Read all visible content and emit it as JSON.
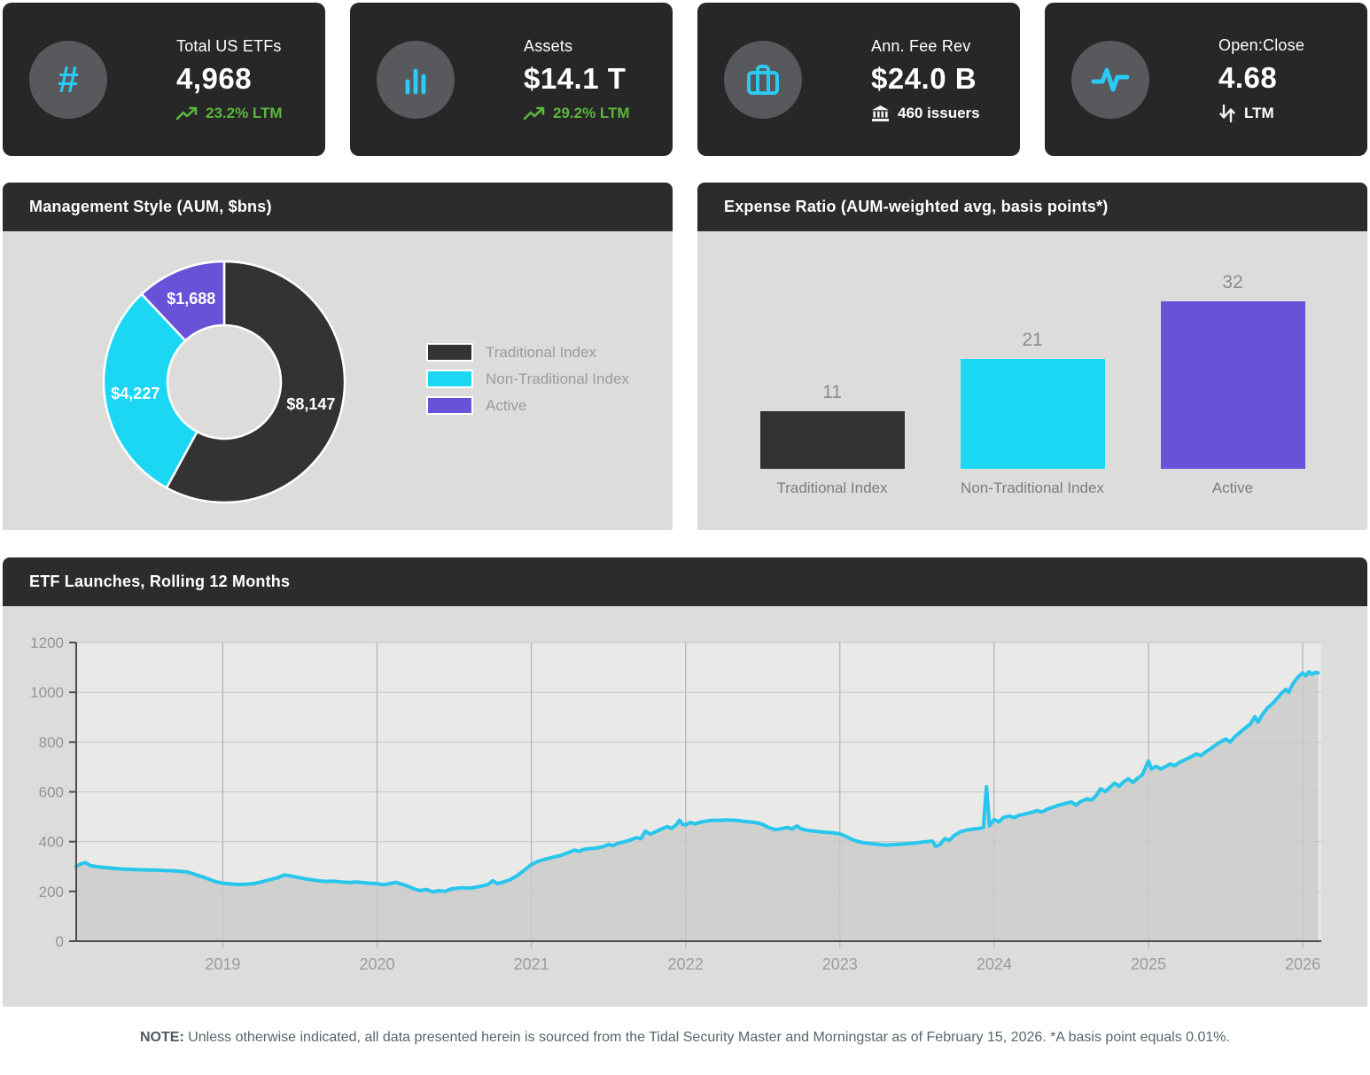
{
  "colors": {
    "card_bg": "#272727",
    "icon_circle_bg": "#58595c",
    "accent_cyan": "#2cc9f2",
    "positive_green": "#5cb53e",
    "panel_header_bg": "#2d2c2b",
    "panel_body_bg": "#dcdddb",
    "dark_series": "#343233",
    "cyan_series": "#1bd7f3",
    "purple_series": "#6a52d8",
    "plot_bg": "#e9e9e8",
    "plot_fill": "#c9c9c8",
    "line_color": "#28c6ec",
    "gridline": "#cdcdcc",
    "year_gridline": "#b5b5b4",
    "axis_line": "#4d4d4d"
  },
  "kpi_cards": [
    {
      "icon": "hash-icon",
      "title": "Total US ETFs",
      "value": "4,968",
      "sub": "23.2% LTM",
      "sub_icon": "trending-up-icon",
      "sub_type": "positive"
    },
    {
      "icon": "bar-chart-icon",
      "title": "Assets",
      "value": "$14.1 T",
      "sub": "29.2% LTM",
      "sub_icon": "trending-up-icon",
      "sub_type": "positive"
    },
    {
      "icon": "briefcase-icon",
      "title": "Ann. Fee Rev",
      "value": "$24.0 B",
      "sub": "460 issuers",
      "sub_icon": "bank-icon",
      "sub_type": "neutral"
    },
    {
      "icon": "activity-icon",
      "title": "Open:Close",
      "value": "4.68",
      "sub": "LTM",
      "sub_icon": "arrows-up-down-icon",
      "sub_type": "neutral"
    }
  ],
  "panels": {
    "management_style": {
      "title": "Management Style (AUM, $bns)"
    },
    "expense_ratio": {
      "title": "Expense Ratio (AUM-weighted avg, basis points*)"
    },
    "etf_launches": {
      "title": "ETF Launches, Rolling 12 Months"
    }
  },
  "chart_data": [
    {
      "type": "pie",
      "donut": true,
      "title": "Management Style (AUM, $bns)",
      "labels": [
        "Traditional Index",
        "Non-Traditional Index",
        "Active"
      ],
      "values": [
        8147,
        4227,
        1688
      ],
      "value_labels": [
        "$8,147",
        "$4,227",
        "$1,688"
      ],
      "colors": [
        "#343233",
        "#1bd7f3",
        "#6a52d8"
      ],
      "legend_position": "right",
      "start_angle_deg": 0,
      "direction": "clockwise"
    },
    {
      "type": "bar",
      "title": "Expense Ratio (AUM-weighted avg, basis points*)",
      "categories": [
        "Traditional Index",
        "Non-Traditional Index",
        "Active"
      ],
      "values": [
        11,
        21,
        32
      ],
      "colors": [
        "#333132",
        "#1bd7f3",
        "#6a52d8"
      ],
      "ylim": [
        0,
        34
      ],
      "grid": false,
      "data_labels": true
    },
    {
      "type": "area",
      "title": "ETF Launches, Rolling 12 Months",
      "xlabel": "",
      "ylabel": "",
      "xlim": [
        2018.05,
        2026.12
      ],
      "ylim": [
        0,
        1200
      ],
      "y_ticks": [
        0,
        200,
        400,
        600,
        800,
        1000,
        1200
      ],
      "x_ticks": [
        2019,
        2020,
        2021,
        2022,
        2023,
        2024,
        2025,
        2026
      ],
      "grid": true,
      "line_color": "#28c6ec",
      "fill_color": "#c9c9c8",
      "points": [
        [
          2018.05,
          300
        ],
        [
          2018.08,
          310
        ],
        [
          2018.11,
          316
        ],
        [
          2018.14,
          304
        ],
        [
          2018.18,
          300
        ],
        [
          2018.22,
          297
        ],
        [
          2018.27,
          294
        ],
        [
          2018.32,
          291
        ],
        [
          2018.37,
          289
        ],
        [
          2018.42,
          288
        ],
        [
          2018.47,
          287
        ],
        [
          2018.52,
          286
        ],
        [
          2018.57,
          286
        ],
        [
          2018.62,
          284
        ],
        [
          2018.67,
          283
        ],
        [
          2018.72,
          281
        ],
        [
          2018.77,
          278
        ],
        [
          2018.82,
          268
        ],
        [
          2018.87,
          258
        ],
        [
          2018.92,
          247
        ],
        [
          2018.96,
          238
        ],
        [
          2019.0,
          233
        ],
        [
          2019.05,
          230
        ],
        [
          2019.1,
          228
        ],
        [
          2019.15,
          229
        ],
        [
          2019.2,
          231
        ],
        [
          2019.25,
          238
        ],
        [
          2019.3,
          246
        ],
        [
          2019.35,
          254
        ],
        [
          2019.4,
          266
        ],
        [
          2019.44,
          262
        ],
        [
          2019.48,
          257
        ],
        [
          2019.52,
          252
        ],
        [
          2019.57,
          247
        ],
        [
          2019.62,
          243
        ],
        [
          2019.67,
          240
        ],
        [
          2019.72,
          241
        ],
        [
          2019.77,
          238
        ],
        [
          2019.82,
          236
        ],
        [
          2019.86,
          238
        ],
        [
          2019.9,
          236
        ],
        [
          2019.95,
          233
        ],
        [
          2020.0,
          231
        ],
        [
          2020.04,
          227
        ],
        [
          2020.08,
          231
        ],
        [
          2020.12,
          236
        ],
        [
          2020.16,
          229
        ],
        [
          2020.2,
          221
        ],
        [
          2020.24,
          210
        ],
        [
          2020.28,
          203
        ],
        [
          2020.32,
          208
        ],
        [
          2020.36,
          198
        ],
        [
          2020.4,
          203
        ],
        [
          2020.44,
          200
        ],
        [
          2020.48,
          210
        ],
        [
          2020.52,
          213
        ],
        [
          2020.56,
          215
        ],
        [
          2020.6,
          213
        ],
        [
          2020.64,
          217
        ],
        [
          2020.68,
          222
        ],
        [
          2020.72,
          228
        ],
        [
          2020.75,
          243
        ],
        [
          2020.78,
          231
        ],
        [
          2020.82,
          238
        ],
        [
          2020.86,
          246
        ],
        [
          2020.9,
          260
        ],
        [
          2020.95,
          283
        ],
        [
          2021.0,
          308
        ],
        [
          2021.04,
          320
        ],
        [
          2021.08,
          328
        ],
        [
          2021.12,
          334
        ],
        [
          2021.16,
          340
        ],
        [
          2021.2,
          346
        ],
        [
          2021.24,
          356
        ],
        [
          2021.28,
          366
        ],
        [
          2021.31,
          361
        ],
        [
          2021.34,
          369
        ],
        [
          2021.38,
          372
        ],
        [
          2021.42,
          374
        ],
        [
          2021.46,
          379
        ],
        [
          2021.5,
          389
        ],
        [
          2021.53,
          384
        ],
        [
          2021.56,
          393
        ],
        [
          2021.6,
          399
        ],
        [
          2021.64,
          406
        ],
        [
          2021.68,
          416
        ],
        [
          2021.71,
          412
        ],
        [
          2021.74,
          442
        ],
        [
          2021.77,
          430
        ],
        [
          2021.8,
          438
        ],
        [
          2021.84,
          450
        ],
        [
          2021.88,
          460
        ],
        [
          2021.91,
          453
        ],
        [
          2021.94,
          468
        ],
        [
          2021.96,
          486
        ],
        [
          2021.98,
          470
        ],
        [
          2022.0,
          467
        ],
        [
          2022.03,
          477
        ],
        [
          2022.06,
          471
        ],
        [
          2022.1,
          479
        ],
        [
          2022.14,
          483
        ],
        [
          2022.18,
          486
        ],
        [
          2022.22,
          485
        ],
        [
          2022.26,
          487
        ],
        [
          2022.3,
          486
        ],
        [
          2022.34,
          485
        ],
        [
          2022.38,
          481
        ],
        [
          2022.42,
          479
        ],
        [
          2022.46,
          476
        ],
        [
          2022.5,
          469
        ],
        [
          2022.54,
          456
        ],
        [
          2022.58,
          448
        ],
        [
          2022.62,
          452
        ],
        [
          2022.66,
          457
        ],
        [
          2022.69,
          451
        ],
        [
          2022.72,
          463
        ],
        [
          2022.75,
          451
        ],
        [
          2022.78,
          446
        ],
        [
          2022.82,
          443
        ],
        [
          2022.86,
          440
        ],
        [
          2022.9,
          438
        ],
        [
          2022.95,
          436
        ],
        [
          2023.0,
          431
        ],
        [
          2023.04,
          421
        ],
        [
          2023.08,
          408
        ],
        [
          2023.12,
          400
        ],
        [
          2023.16,
          395
        ],
        [
          2023.2,
          392
        ],
        [
          2023.25,
          389
        ],
        [
          2023.3,
          386
        ],
        [
          2023.35,
          388
        ],
        [
          2023.4,
          390
        ],
        [
          2023.45,
          392
        ],
        [
          2023.5,
          395
        ],
        [
          2023.55,
          399
        ],
        [
          2023.6,
          402
        ],
        [
          2023.62,
          381
        ],
        [
          2023.65,
          389
        ],
        [
          2023.68,
          412
        ],
        [
          2023.71,
          405
        ],
        [
          2023.74,
          424
        ],
        [
          2023.78,
          439
        ],
        [
          2023.82,
          446
        ],
        [
          2023.86,
          450
        ],
        [
          2023.9,
          453
        ],
        [
          2023.93,
          457
        ],
        [
          2023.95,
          620
        ],
        [
          2023.97,
          463
        ],
        [
          2024.0,
          489
        ],
        [
          2024.03,
          479
        ],
        [
          2024.06,
          497
        ],
        [
          2024.1,
          503
        ],
        [
          2024.13,
          496
        ],
        [
          2024.16,
          506
        ],
        [
          2024.2,
          511
        ],
        [
          2024.24,
          517
        ],
        [
          2024.28,
          524
        ],
        [
          2024.31,
          519
        ],
        [
          2024.34,
          529
        ],
        [
          2024.38,
          538
        ],
        [
          2024.42,
          547
        ],
        [
          2024.46,
          553
        ],
        [
          2024.5,
          559
        ],
        [
          2024.53,
          547
        ],
        [
          2024.56,
          561
        ],
        [
          2024.6,
          572
        ],
        [
          2024.63,
          567
        ],
        [
          2024.66,
          584
        ],
        [
          2024.69,
          612
        ],
        [
          2024.72,
          601
        ],
        [
          2024.75,
          618
        ],
        [
          2024.78,
          635
        ],
        [
          2024.81,
          622
        ],
        [
          2024.84,
          641
        ],
        [
          2024.87,
          652
        ],
        [
          2024.9,
          638
        ],
        [
          2024.93,
          655
        ],
        [
          2024.96,
          668
        ],
        [
          2025.0,
          724
        ],
        [
          2025.02,
          692
        ],
        [
          2025.05,
          703
        ],
        [
          2025.08,
          692
        ],
        [
          2025.11,
          701
        ],
        [
          2025.14,
          712
        ],
        [
          2025.17,
          705
        ],
        [
          2025.2,
          718
        ],
        [
          2025.24,
          730
        ],
        [
          2025.28,
          742
        ],
        [
          2025.31,
          752
        ],
        [
          2025.34,
          746
        ],
        [
          2025.37,
          760
        ],
        [
          2025.4,
          772
        ],
        [
          2025.43,
          786
        ],
        [
          2025.46,
          798
        ],
        [
          2025.5,
          812
        ],
        [
          2025.53,
          800
        ],
        [
          2025.56,
          822
        ],
        [
          2025.6,
          843
        ],
        [
          2025.63,
          858
        ],
        [
          2025.66,
          872
        ],
        [
          2025.69,
          902
        ],
        [
          2025.71,
          880
        ],
        [
          2025.74,
          912
        ],
        [
          2025.77,
          936
        ],
        [
          2025.8,
          952
        ],
        [
          2025.83,
          972
        ],
        [
          2025.86,
          995
        ],
        [
          2025.89,
          1012
        ],
        [
          2025.91,
          1000
        ],
        [
          2025.93,
          1028
        ],
        [
          2025.95,
          1046
        ],
        [
          2025.97,
          1062
        ],
        [
          2026.0,
          1078
        ],
        [
          2026.02,
          1066
        ],
        [
          2026.04,
          1082
        ],
        [
          2026.06,
          1072
        ],
        [
          2026.08,
          1080
        ],
        [
          2026.1,
          1078
        ]
      ]
    }
  ],
  "note": {
    "label": "NOTE:",
    "text": " Unless otherwise indicated, all data presented herein is sourced from the Tidal Security Master and Morningstar as of February 15, 2026. *A basis point equals 0.01%."
  }
}
